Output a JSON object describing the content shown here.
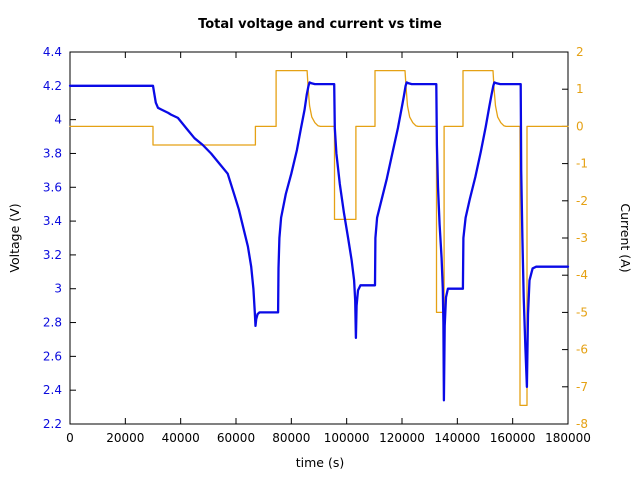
{
  "chart_data": {
    "type": "line",
    "title": "Total voltage and current vs time",
    "xlabel": "time (s)",
    "grid": false,
    "legend": "none",
    "frame": {
      "color": "#000000",
      "tick_length": 6
    },
    "x_axis": {
      "range": [
        0,
        180000
      ],
      "tick_values": [
        0,
        20000,
        40000,
        60000,
        80000,
        100000,
        120000,
        140000,
        160000,
        180000
      ],
      "tick_labels": [
        "0",
        "20000",
        "40000",
        "60000",
        "80000",
        "100000",
        "120000",
        "140000",
        "160000",
        "180000"
      ],
      "label_color": "#000000"
    },
    "left_axis": {
      "label": "Voltage (V)",
      "range": [
        2.2,
        4.4
      ],
      "tick_values": [
        2.2,
        2.4,
        2.6,
        2.8,
        3.0,
        3.2,
        3.4,
        3.6,
        3.8,
        4.0,
        4.2,
        4.4
      ],
      "tick_labels": [
        "2.2",
        "2.4",
        "2.6",
        "2.8",
        "3",
        "3.2",
        "3.4",
        "3.6",
        "3.8",
        "4",
        "4.2",
        "4.4"
      ],
      "color": "#0b0bdd"
    },
    "right_axis": {
      "label": "Current (A)",
      "range": [
        -8,
        2
      ],
      "tick_values": [
        -8,
        -7,
        -6,
        -5,
        -4,
        -3,
        -2,
        -1,
        0,
        1,
        2
      ],
      "tick_labels": [
        "-8",
        "-7",
        "-6",
        "-5",
        "-4",
        "-3",
        "-2",
        "-1",
        "0",
        "1",
        "2"
      ],
      "color": "#e5a114"
    },
    "series": [
      {
        "name": "current",
        "axis": "right",
        "color": "#e5a114",
        "width": 1.3,
        "points": [
          [
            0,
            0
          ],
          [
            30000,
            0
          ],
          [
            30000,
            -0.5
          ],
          [
            67000,
            -0.5
          ],
          [
            67000,
            0
          ],
          [
            74500,
            0
          ],
          [
            74500,
            1.5
          ],
          [
            85700,
            1.5
          ],
          [
            86100,
            1.0
          ],
          [
            86600,
            0.55
          ],
          [
            87400,
            0.25
          ],
          [
            88500,
            0.1
          ],
          [
            89600,
            0.02
          ],
          [
            90500,
            0
          ],
          [
            95600,
            0
          ],
          [
            95600,
            -2.5
          ],
          [
            103350,
            -2.5
          ],
          [
            103350,
            0
          ],
          [
            110250,
            0
          ],
          [
            110250,
            1.5
          ],
          [
            121100,
            1.5
          ],
          [
            121500,
            1.0
          ],
          [
            122000,
            0.55
          ],
          [
            122800,
            0.25
          ],
          [
            123900,
            0.1
          ],
          [
            125000,
            0.02
          ],
          [
            125800,
            0
          ],
          [
            132470,
            0
          ],
          [
            132470,
            -5
          ],
          [
            135200,
            -5
          ],
          [
            135200,
            0
          ],
          [
            142050,
            0
          ],
          [
            142050,
            1.5
          ],
          [
            152900,
            1.5
          ],
          [
            153300,
            1.0
          ],
          [
            153800,
            0.55
          ],
          [
            154600,
            0.25
          ],
          [
            155700,
            0.1
          ],
          [
            156800,
            0.02
          ],
          [
            157600,
            0
          ],
          [
            162650,
            0
          ],
          [
            162650,
            -7.5
          ],
          [
            165180,
            -7.5
          ],
          [
            165180,
            0
          ],
          [
            180000,
            0
          ]
        ]
      },
      {
        "name": "voltage",
        "axis": "left",
        "color": "#0a0ae6",
        "width": 2.3,
        "points": [
          [
            0,
            4.2
          ],
          [
            30000,
            4.2
          ],
          [
            30400,
            4.16
          ],
          [
            31000,
            4.1
          ],
          [
            31800,
            4.07
          ],
          [
            33000,
            4.06
          ],
          [
            35500,
            4.04
          ],
          [
            36500,
            4.03
          ],
          [
            39000,
            4.01
          ],
          [
            42000,
            3.95
          ],
          [
            45000,
            3.89
          ],
          [
            48000,
            3.85
          ],
          [
            51000,
            3.8
          ],
          [
            54000,
            3.74
          ],
          [
            57000,
            3.68
          ],
          [
            59500,
            3.55
          ],
          [
            61000,
            3.47
          ],
          [
            62200,
            3.39
          ],
          [
            64300,
            3.25
          ],
          [
            65500,
            3.13
          ],
          [
            66300,
            3.0
          ],
          [
            66800,
            2.86
          ],
          [
            67050,
            2.78
          ],
          [
            67300,
            2.82
          ],
          [
            67800,
            2.85
          ],
          [
            68500,
            2.86
          ],
          [
            75200,
            2.86
          ],
          [
            75350,
            3.12
          ],
          [
            75700,
            3.3
          ],
          [
            76300,
            3.42
          ],
          [
            78000,
            3.56
          ],
          [
            80000,
            3.68
          ],
          [
            82000,
            3.82
          ],
          [
            83500,
            3.95
          ],
          [
            84800,
            4.06
          ],
          [
            85600,
            4.15
          ],
          [
            86200,
            4.2
          ],
          [
            86600,
            4.22
          ],
          [
            87300,
            4.215
          ],
          [
            88500,
            4.21
          ],
          [
            95500,
            4.21
          ],
          [
            95700,
            3.95
          ],
          [
            96300,
            3.8
          ],
          [
            97500,
            3.62
          ],
          [
            99000,
            3.45
          ],
          [
            100500,
            3.3
          ],
          [
            101800,
            3.17
          ],
          [
            102700,
            3.05
          ],
          [
            103100,
            2.93
          ],
          [
            103330,
            2.71
          ],
          [
            103600,
            2.9
          ],
          [
            104100,
            2.99
          ],
          [
            105000,
            3.02
          ],
          [
            110250,
            3.02
          ],
          [
            110400,
            3.3
          ],
          [
            111000,
            3.42
          ],
          [
            112500,
            3.52
          ],
          [
            114500,
            3.65
          ],
          [
            116500,
            3.8
          ],
          [
            118500,
            3.95
          ],
          [
            119800,
            4.06
          ],
          [
            120700,
            4.14
          ],
          [
            121300,
            4.2
          ],
          [
            121700,
            4.22
          ],
          [
            122400,
            4.215
          ],
          [
            123500,
            4.21
          ],
          [
            132400,
            4.21
          ],
          [
            132600,
            3.85
          ],
          [
            133000,
            3.6
          ],
          [
            133600,
            3.38
          ],
          [
            134300,
            3.18
          ],
          [
            134750,
            3.0
          ],
          [
            134980,
            2.8
          ],
          [
            135130,
            2.34
          ],
          [
            135450,
            2.78
          ],
          [
            135900,
            2.95
          ],
          [
            136600,
            3.0
          ],
          [
            142000,
            3.0
          ],
          [
            142200,
            3.3
          ],
          [
            143000,
            3.42
          ],
          [
            144500,
            3.53
          ],
          [
            146500,
            3.66
          ],
          [
            148500,
            3.81
          ],
          [
            150300,
            3.96
          ],
          [
            151600,
            4.08
          ],
          [
            152400,
            4.15
          ],
          [
            153000,
            4.2
          ],
          [
            153400,
            4.22
          ],
          [
            154200,
            4.215
          ],
          [
            155500,
            4.21
          ],
          [
            162900,
            4.21
          ],
          [
            163100,
            3.7
          ],
          [
            163500,
            3.3
          ],
          [
            164000,
            2.95
          ],
          [
            164600,
            2.65
          ],
          [
            165150,
            2.42
          ],
          [
            165550,
            2.85
          ],
          [
            166100,
            3.05
          ],
          [
            167200,
            3.12
          ],
          [
            168500,
            3.13
          ],
          [
            180000,
            3.13
          ]
        ]
      }
    ]
  }
}
